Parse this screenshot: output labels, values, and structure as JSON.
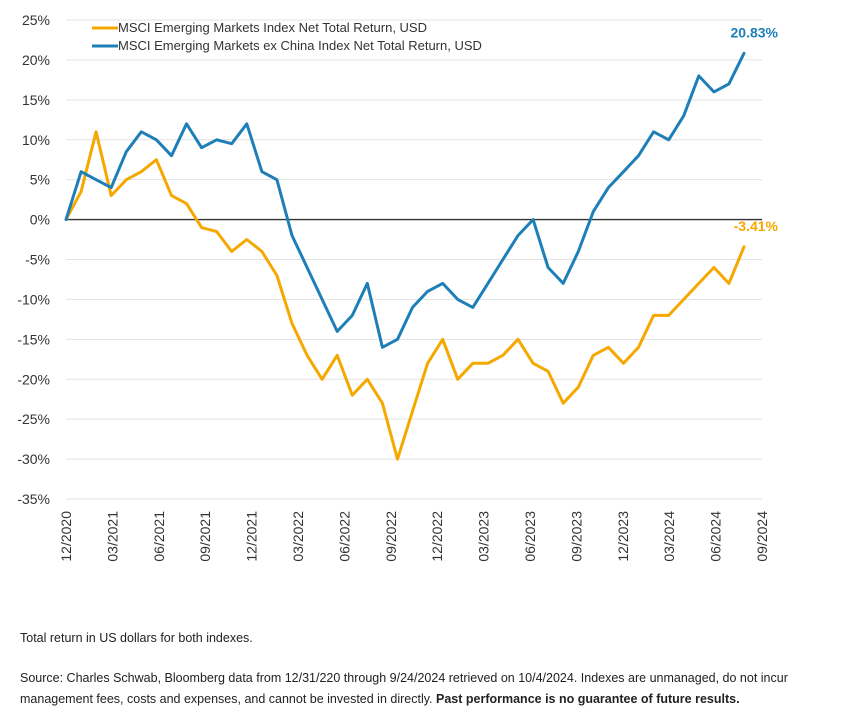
{
  "chart_data": {
    "type": "line",
    "ylim": [
      -35,
      25
    ],
    "y_ticks": [
      25,
      20,
      15,
      10,
      5,
      0,
      -5,
      -10,
      -15,
      -20,
      -25,
      -30,
      -35
    ],
    "y_tick_format": "percent",
    "x_tick_labels": [
      "12/2020",
      "03/2021",
      "06/2021",
      "09/2021",
      "12/2021",
      "03/2022",
      "06/2022",
      "09/2022",
      "12/2022",
      "03/2023",
      "06/2023",
      "09/2023",
      "12/2023",
      "03/2024",
      "06/2024",
      "09/2024"
    ],
    "grid": true,
    "legend": "top-left",
    "series": [
      {
        "name": "MSCI Emerging Markets Index Net Total Return, USD",
        "color": "#F5A800",
        "end_label": "-3.41%",
        "x": [
          "12/2020",
          "01/2021",
          "02/2021",
          "03/2021",
          "04/2021",
          "05/2021",
          "06/2021",
          "07/2021",
          "08/2021",
          "09/2021",
          "10/2021",
          "11/2021",
          "12/2021",
          "01/2022",
          "02/2022",
          "03/2022",
          "04/2022",
          "05/2022",
          "06/2022",
          "07/2022",
          "08/2022",
          "09/2022",
          "10/2022",
          "11/2022",
          "12/2022",
          "01/2023",
          "02/2023",
          "03/2023",
          "04/2023",
          "05/2023",
          "06/2023",
          "07/2023",
          "08/2023",
          "09/2023",
          "10/2023",
          "11/2023",
          "12/2023",
          "01/2024",
          "02/2024",
          "03/2024",
          "04/2024",
          "05/2024",
          "06/2024",
          "07/2024",
          "08/2024",
          "09/2024"
        ],
        "values": [
          0,
          3.5,
          11,
          3,
          5,
          6,
          7.5,
          3,
          2,
          -1,
          -1.5,
          -4,
          -2.5,
          -4,
          -7,
          -13,
          -17,
          -20,
          -17,
          -22,
          -20,
          -23,
          -30,
          -24,
          -18,
          -15,
          -20,
          -18,
          -18,
          -17,
          -15,
          -18,
          -19,
          -23,
          -21,
          -17,
          -16,
          -18,
          -16,
          -12,
          -12,
          -10,
          -8,
          -6,
          -8,
          -3.41
        ]
      },
      {
        "name": "MSCI Emerging Markets ex China Index Net Total Return, USD",
        "color": "#1E7FB8",
        "end_label": "20.83%",
        "x": [
          "12/2020",
          "01/2021",
          "02/2021",
          "03/2021",
          "04/2021",
          "05/2021",
          "06/2021",
          "07/2021",
          "08/2021",
          "09/2021",
          "10/2021",
          "11/2021",
          "12/2021",
          "01/2022",
          "02/2022",
          "03/2022",
          "04/2022",
          "05/2022",
          "06/2022",
          "07/2022",
          "08/2022",
          "09/2022",
          "10/2022",
          "11/2022",
          "12/2022",
          "01/2023",
          "02/2023",
          "03/2023",
          "04/2023",
          "05/2023",
          "06/2023",
          "07/2023",
          "08/2023",
          "09/2023",
          "10/2023",
          "11/2023",
          "12/2023",
          "01/2024",
          "02/2024",
          "03/2024",
          "04/2024",
          "05/2024",
          "06/2024",
          "07/2024",
          "08/2024",
          "09/2024"
        ],
        "values": [
          0,
          6,
          5,
          4,
          8.5,
          11,
          10,
          8,
          12,
          9,
          10,
          9.5,
          12,
          6,
          5,
          -2,
          -6,
          -10,
          -14,
          -12,
          -8,
          -16,
          -15,
          -11,
          -9,
          -8,
          -10,
          -11,
          -8,
          -5,
          -2,
          0,
          -6,
          -8,
          -4,
          1,
          4,
          6,
          8,
          11,
          10,
          13,
          18,
          16,
          17,
          20.83
        ]
      }
    ]
  },
  "notes": {
    "line1": "Total return in US dollars for both indexes.",
    "line2_a": "Source: Charles Schwab, Bloomberg data from 12/31/220 through 9/24/2024 retrieved on 10/4/2024. Indexes are unmanaged, do not incur management fees, costs and expenses, and cannot be invested in directly. ",
    "line2_b": "Past performance is no guarantee of future results."
  }
}
